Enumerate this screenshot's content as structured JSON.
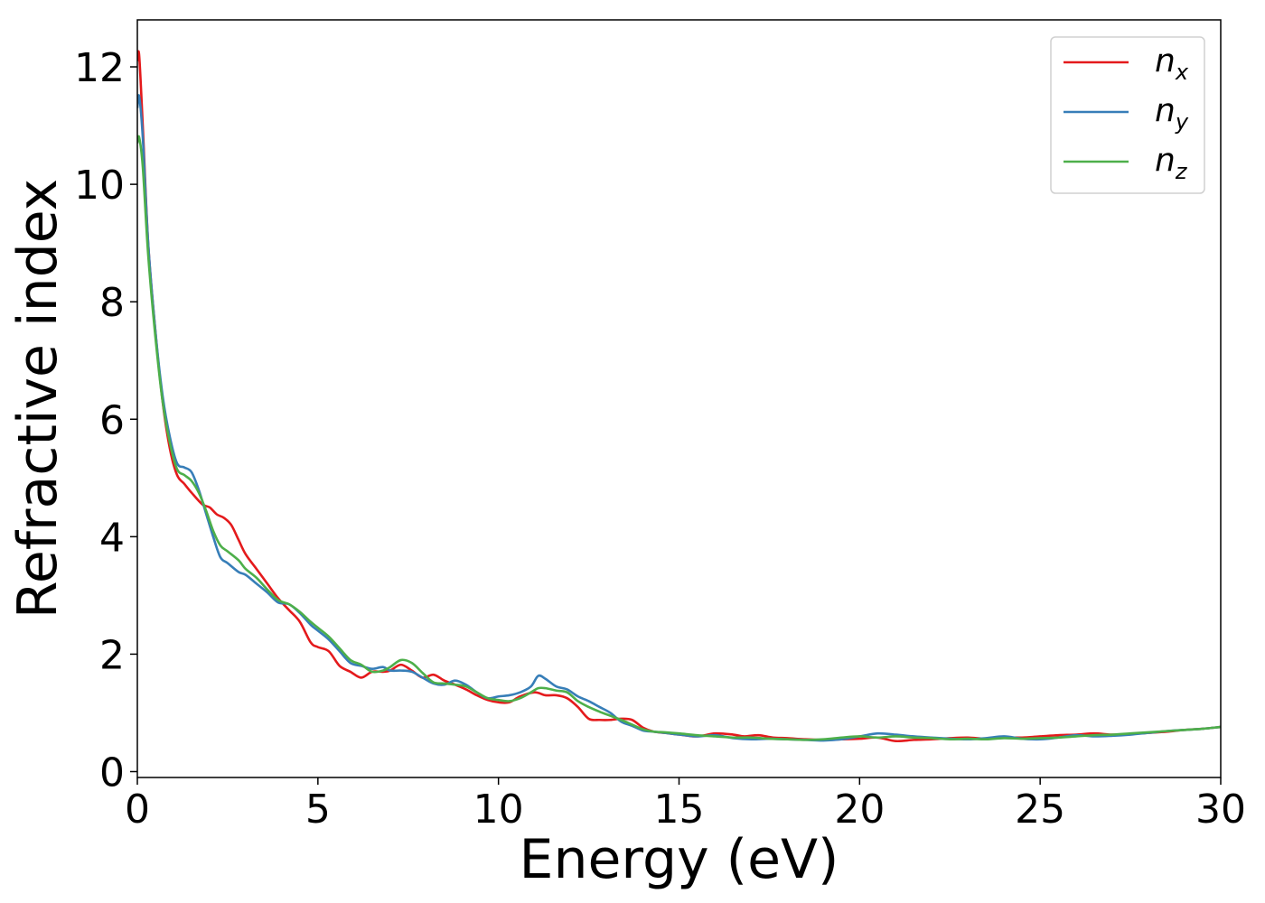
{
  "chart_data": {
    "type": "line",
    "title": "",
    "xlabel": "Energy (eV)",
    "ylabel": "Refractive index",
    "xlim": [
      0,
      30
    ],
    "ylim": [
      -0.1,
      12.8
    ],
    "xticks": [
      0,
      5,
      10,
      15,
      20,
      25,
      30
    ],
    "yticks": [
      0,
      2,
      4,
      6,
      8,
      10,
      12
    ],
    "grid": false,
    "legend_position": "top-right",
    "series": [
      {
        "name": "n_x",
        "label_base": "n",
        "label_sub": "x",
        "color": "#e41a1c",
        "x": [
          0,
          0.05,
          0.15,
          0.3,
          0.5,
          0.7,
          0.9,
          1.1,
          1.3,
          1.5,
          1.8,
          2.0,
          2.2,
          2.4,
          2.6,
          2.8,
          3.0,
          3.3,
          3.6,
          3.9,
          4.2,
          4.5,
          4.8,
          5.0,
          5.3,
          5.6,
          5.9,
          6.2,
          6.5,
          6.8,
          7.0,
          7.3,
          7.6,
          7.9,
          8.2,
          8.5,
          8.8,
          9.1,
          9.4,
          9.7,
          10.0,
          10.3,
          10.6,
          11.0,
          11.3,
          11.6,
          11.9,
          12.2,
          12.5,
          12.8,
          13.1,
          13.4,
          13.7,
          14.0,
          14.3,
          14.6,
          15.0,
          15.5,
          16.0,
          16.5,
          16.8,
          17.2,
          17.6,
          18.0,
          18.5,
          19.0,
          19.5,
          20.0,
          20.5,
          21.0,
          21.5,
          22.0,
          22.5,
          23.0,
          23.5,
          24.0,
          24.5,
          25.0,
          25.5,
          26.0,
          26.5,
          27.0,
          27.5,
          28.0,
          28.5,
          29.0,
          29.5,
          30.0
        ],
        "y": [
          12.1,
          12.2,
          11.0,
          9.0,
          7.5,
          6.3,
          5.5,
          5.05,
          4.9,
          4.75,
          4.55,
          4.5,
          4.38,
          4.32,
          4.2,
          3.95,
          3.7,
          3.45,
          3.2,
          2.95,
          2.75,
          2.55,
          2.2,
          2.12,
          2.05,
          1.8,
          1.7,
          1.6,
          1.7,
          1.7,
          1.72,
          1.82,
          1.72,
          1.6,
          1.65,
          1.55,
          1.48,
          1.4,
          1.3,
          1.22,
          1.18,
          1.18,
          1.28,
          1.35,
          1.3,
          1.3,
          1.25,
          1.1,
          0.9,
          0.88,
          0.88,
          0.9,
          0.88,
          0.75,
          0.68,
          0.66,
          0.63,
          0.6,
          0.65,
          0.63,
          0.6,
          0.62,
          0.58,
          0.57,
          0.55,
          0.54,
          0.55,
          0.56,
          0.58,
          0.52,
          0.54,
          0.55,
          0.57,
          0.58,
          0.56,
          0.58,
          0.58,
          0.6,
          0.62,
          0.63,
          0.65,
          0.63,
          0.64,
          0.66,
          0.68,
          0.71,
          0.73,
          0.76
        ]
      },
      {
        "name": "n_y",
        "label_base": "n",
        "label_sub": "y",
        "color": "#377eb8",
        "x": [
          0,
          0.05,
          0.15,
          0.3,
          0.5,
          0.7,
          0.9,
          1.1,
          1.3,
          1.5,
          1.7,
          1.9,
          2.1,
          2.3,
          2.5,
          2.8,
          3.0,
          3.3,
          3.6,
          3.9,
          4.2,
          4.5,
          4.8,
          5.0,
          5.3,
          5.6,
          5.9,
          6.2,
          6.5,
          6.8,
          7.0,
          7.3,
          7.6,
          7.9,
          8.2,
          8.5,
          8.8,
          9.1,
          9.4,
          9.7,
          10.0,
          10.3,
          10.6,
          10.9,
          11.1,
          11.3,
          11.6,
          11.9,
          12.2,
          12.5,
          12.8,
          13.1,
          13.4,
          13.7,
          14.0,
          14.3,
          14.6,
          15.0,
          15.5,
          16.0,
          16.5,
          17.0,
          17.5,
          18.0,
          18.5,
          19.0,
          19.5,
          20.0,
          20.5,
          21.0,
          21.5,
          22.0,
          22.5,
          23.0,
          23.5,
          24.0,
          24.5,
          25.0,
          25.5,
          26.0,
          26.5,
          27.0,
          27.5,
          28.0,
          28.5,
          29.0,
          29.5,
          30.0
        ],
        "y": [
          11.3,
          11.5,
          10.8,
          9.0,
          7.5,
          6.4,
          5.7,
          5.25,
          5.18,
          5.1,
          4.8,
          4.4,
          4.0,
          3.65,
          3.55,
          3.4,
          3.35,
          3.2,
          3.05,
          2.88,
          2.85,
          2.7,
          2.5,
          2.4,
          2.25,
          2.05,
          1.85,
          1.8,
          1.75,
          1.78,
          1.72,
          1.72,
          1.7,
          1.6,
          1.5,
          1.48,
          1.55,
          1.48,
          1.35,
          1.25,
          1.28,
          1.3,
          1.35,
          1.45,
          1.63,
          1.58,
          1.45,
          1.4,
          1.28,
          1.2,
          1.1,
          1.0,
          0.85,
          0.78,
          0.7,
          0.68,
          0.66,
          0.63,
          0.6,
          0.62,
          0.57,
          0.55,
          0.56,
          0.55,
          0.54,
          0.53,
          0.55,
          0.6,
          0.65,
          0.63,
          0.6,
          0.58,
          0.56,
          0.55,
          0.57,
          0.6,
          0.56,
          0.55,
          0.58,
          0.62,
          0.6,
          0.61,
          0.63,
          0.66,
          0.69,
          0.71,
          0.73,
          0.76
        ]
      },
      {
        "name": "n_z",
        "label_base": "n",
        "label_sub": "z",
        "color": "#4daf4a",
        "x": [
          0,
          0.05,
          0.15,
          0.3,
          0.5,
          0.7,
          0.9,
          1.1,
          1.3,
          1.5,
          1.7,
          1.9,
          2.1,
          2.3,
          2.5,
          2.8,
          3.0,
          3.3,
          3.6,
          3.9,
          4.2,
          4.5,
          4.8,
          5.0,
          5.3,
          5.6,
          5.9,
          6.2,
          6.5,
          6.8,
          7.0,
          7.3,
          7.6,
          7.9,
          8.2,
          8.5,
          8.8,
          9.1,
          9.4,
          9.7,
          10.0,
          10.3,
          10.6,
          10.9,
          11.1,
          11.3,
          11.6,
          11.9,
          12.2,
          12.5,
          12.8,
          13.1,
          13.4,
          13.7,
          14.0,
          14.3,
          14.6,
          15.0,
          15.5,
          16.0,
          16.5,
          17.0,
          17.5,
          18.0,
          18.5,
          19.0,
          19.5,
          20.0,
          20.5,
          21.0,
          21.5,
          22.0,
          22.5,
          23.0,
          23.5,
          24.0,
          24.5,
          25.0,
          25.5,
          26.0,
          26.5,
          27.0,
          27.5,
          28.0,
          28.5,
          29.0,
          29.5,
          30.0
        ],
        "y": [
          10.7,
          10.8,
          10.3,
          8.8,
          7.4,
          6.3,
          5.6,
          5.15,
          5.05,
          4.95,
          4.75,
          4.45,
          4.1,
          3.85,
          3.75,
          3.6,
          3.45,
          3.3,
          3.1,
          2.92,
          2.85,
          2.72,
          2.55,
          2.45,
          2.3,
          2.1,
          1.9,
          1.82,
          1.7,
          1.72,
          1.78,
          1.9,
          1.85,
          1.68,
          1.52,
          1.5,
          1.48,
          1.45,
          1.35,
          1.25,
          1.22,
          1.2,
          1.25,
          1.35,
          1.42,
          1.42,
          1.38,
          1.35,
          1.2,
          1.1,
          1.02,
          0.95,
          0.88,
          0.8,
          0.72,
          0.68,
          0.67,
          0.65,
          0.62,
          0.6,
          0.58,
          0.58,
          0.56,
          0.55,
          0.54,
          0.55,
          0.58,
          0.6,
          0.58,
          0.6,
          0.58,
          0.57,
          0.55,
          0.56,
          0.55,
          0.57,
          0.56,
          0.57,
          0.58,
          0.6,
          0.62,
          0.63,
          0.65,
          0.67,
          0.69,
          0.71,
          0.73,
          0.76
        ]
      }
    ]
  }
}
